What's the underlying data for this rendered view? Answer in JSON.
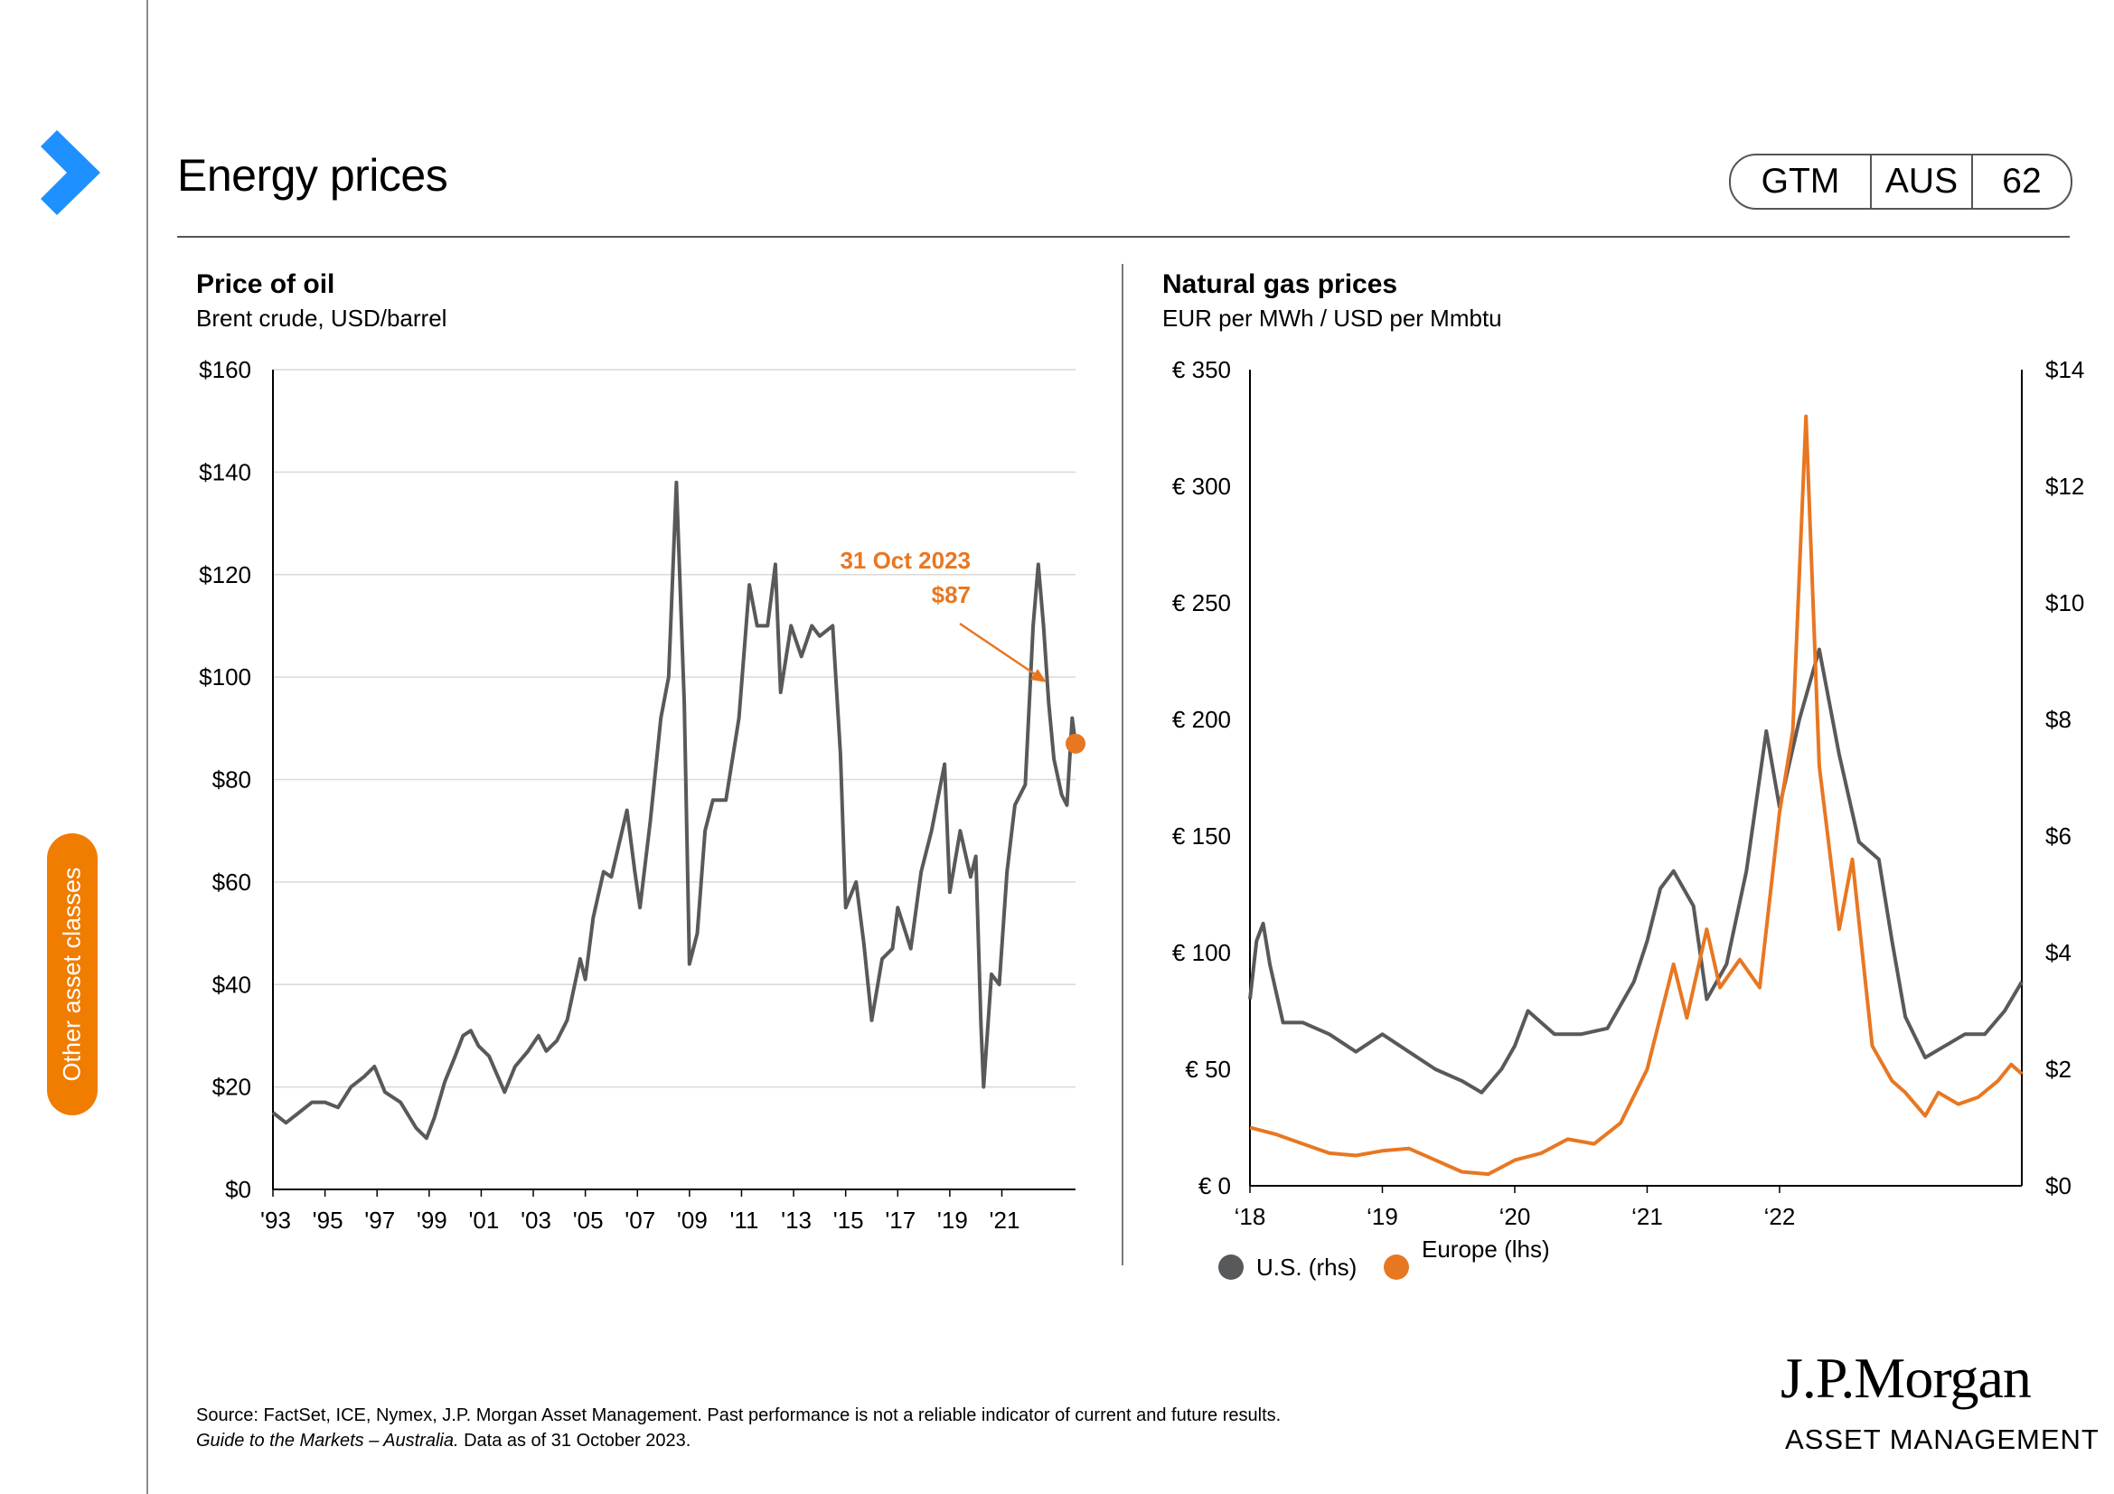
{
  "header": {
    "title": "Energy prices",
    "badge": [
      "GTM",
      "AUS",
      "62"
    ]
  },
  "sidebar": {
    "tab_label": "Other asset classes",
    "tab_color": "#f07c00",
    "arrow_color": "#1e90ff",
    "arrow_icon": "chevron-right-icon"
  },
  "chart_data": [
    {
      "type": "line",
      "title": "Price of oil",
      "subtitle": "Brent crude, USD/barrel",
      "x_tick_labels": [
        "'93",
        "'95",
        "'97",
        "'99",
        "'01",
        "'03",
        "'05",
        "'07",
        "'09",
        "'11",
        "'13",
        "'15",
        "'17",
        "'19",
        "'21"
      ],
      "y_tick_labels": [
        "$0",
        "$20",
        "$40",
        "$60",
        "$80",
        "$100",
        "$120",
        "$140",
        "$160"
      ],
      "xlim": [
        1993,
        2023.83
      ],
      "ylim": [
        0,
        160
      ],
      "grid": true,
      "series": [
        {
          "color": "#58595b",
          "points": [
            [
              1993.0,
              15
            ],
            [
              1993.5,
              13
            ],
            [
              1994.0,
              15
            ],
            [
              1994.5,
              17
            ],
            [
              1995.0,
              17
            ],
            [
              1995.5,
              16
            ],
            [
              1996.0,
              20
            ],
            [
              1996.5,
              22
            ],
            [
              1996.9,
              24
            ],
            [
              1997.3,
              19
            ],
            [
              1997.9,
              17
            ],
            [
              1998.5,
              12
            ],
            [
              1998.9,
              10
            ],
            [
              1999.2,
              14
            ],
            [
              1999.6,
              21
            ],
            [
              2000.0,
              26
            ],
            [
              2000.3,
              30
            ],
            [
              2000.6,
              31
            ],
            [
              2000.9,
              28
            ],
            [
              2001.3,
              26
            ],
            [
              2001.9,
              19
            ],
            [
              2002.3,
              24
            ],
            [
              2002.8,
              27
            ],
            [
              2003.2,
              30
            ],
            [
              2003.5,
              27
            ],
            [
              2003.9,
              29
            ],
            [
              2004.3,
              33
            ],
            [
              2004.8,
              45
            ],
            [
              2005.0,
              41
            ],
            [
              2005.3,
              53
            ],
            [
              2005.7,
              62
            ],
            [
              2006.0,
              61
            ],
            [
              2006.6,
              74
            ],
            [
              2006.9,
              62
            ],
            [
              2007.1,
              55
            ],
            [
              2007.5,
              72
            ],
            [
              2007.9,
              92
            ],
            [
              2008.2,
              100
            ],
            [
              2008.5,
              138
            ],
            [
              2008.8,
              95
            ],
            [
              2009.0,
              44
            ],
            [
              2009.3,
              50
            ],
            [
              2009.6,
              70
            ],
            [
              2009.9,
              76
            ],
            [
              2010.4,
              76
            ],
            [
              2010.9,
              92
            ],
            [
              2011.3,
              118
            ],
            [
              2011.6,
              110
            ],
            [
              2012.0,
              110
            ],
            [
              2012.3,
              122
            ],
            [
              2012.5,
              97
            ],
            [
              2012.9,
              110
            ],
            [
              2013.3,
              104
            ],
            [
              2013.7,
              110
            ],
            [
              2014.0,
              108
            ],
            [
              2014.5,
              110
            ],
            [
              2014.8,
              85
            ],
            [
              2015.0,
              55
            ],
            [
              2015.4,
              60
            ],
            [
              2015.7,
              48
            ],
            [
              2016.0,
              33
            ],
            [
              2016.4,
              45
            ],
            [
              2016.8,
              47
            ],
            [
              2017.0,
              55
            ],
            [
              2017.5,
              47
            ],
            [
              2017.9,
              62
            ],
            [
              2018.3,
              70
            ],
            [
              2018.8,
              83
            ],
            [
              2019.0,
              58
            ],
            [
              2019.4,
              70
            ],
            [
              2019.8,
              61
            ],
            [
              2020.0,
              65
            ],
            [
              2020.2,
              32
            ],
            [
              2020.3,
              20
            ],
            [
              2020.6,
              42
            ],
            [
              2020.9,
              40
            ],
            [
              2021.2,
              62
            ],
            [
              2021.5,
              75
            ],
            [
              2021.9,
              79
            ],
            [
              2022.2,
              110
            ],
            [
              2022.4,
              122
            ],
            [
              2022.6,
              110
            ],
            [
              2022.8,
              95
            ],
            [
              2023.0,
              84
            ],
            [
              2023.3,
              77
            ],
            [
              2023.5,
              75
            ],
            [
              2023.7,
              92
            ],
            [
              2023.83,
              87
            ]
          ]
        }
      ],
      "annotations": [
        {
          "text": "31 Oct 2023",
          "color": "#e87722"
        },
        {
          "text": "$87",
          "color": "#e87722"
        }
      ],
      "last_point": {
        "x": 2023.83,
        "y": 87,
        "color": "#e87722"
      }
    },
    {
      "type": "line",
      "title": "Natural gas prices",
      "subtitle": "EUR per MWh / USD per Mmbtu",
      "x_tick_labels": [
        "‘18",
        "‘19",
        "‘20",
        "‘21",
        "‘22"
      ],
      "y_tick_labels": [
        "€ 0",
        "€ 50",
        "€ 100",
        "€ 150",
        "€ 200",
        "€ 250",
        "€ 300",
        "€ 350"
      ],
      "y2_tick_labels": [
        "$0",
        "$2",
        "$4",
        "$6",
        "$8",
        "$10",
        "$12",
        "$14"
      ],
      "xlim": [
        2018.0,
        2023.83
      ],
      "ylim": [
        0,
        350
      ],
      "y2lim": [
        0,
        14
      ],
      "grid": false,
      "legend_position": "bottom-left",
      "series": [
        {
          "name": "U.S. (rhs)",
          "axis": "right",
          "color": "#58595b",
          "points": [
            [
              2018.0,
              3.2
            ],
            [
              2018.05,
              4.2
            ],
            [
              2018.1,
              4.5
            ],
            [
              2018.15,
              3.8
            ],
            [
              2018.25,
              2.8
            ],
            [
              2018.4,
              2.8
            ],
            [
              2018.6,
              2.6
            ],
            [
              2018.8,
              2.3
            ],
            [
              2019.0,
              2.6
            ],
            [
              2019.2,
              2.3
            ],
            [
              2019.4,
              2.0
            ],
            [
              2019.6,
              1.8
            ],
            [
              2019.75,
              1.6
            ],
            [
              2019.9,
              2.0
            ],
            [
              2020.0,
              2.4
            ],
            [
              2020.1,
              3.0
            ],
            [
              2020.3,
              2.6
            ],
            [
              2020.5,
              2.6
            ],
            [
              2020.7,
              2.7
            ],
            [
              2020.9,
              3.5
            ],
            [
              2021.0,
              4.2
            ],
            [
              2021.1,
              5.1
            ],
            [
              2021.2,
              5.4
            ],
            [
              2021.35,
              4.8
            ],
            [
              2021.45,
              3.2
            ],
            [
              2021.6,
              3.8
            ],
            [
              2021.75,
              5.4
            ],
            [
              2021.9,
              7.8
            ],
            [
              2022.0,
              6.5
            ],
            [
              2022.15,
              8.0
            ],
            [
              2022.3,
              9.2
            ],
            [
              2022.45,
              7.4
            ],
            [
              2022.6,
              5.9
            ],
            [
              2022.75,
              5.6
            ],
            [
              2022.85,
              4.2
            ],
            [
              2022.95,
              2.9
            ],
            [
              2023.1,
              2.2
            ],
            [
              2023.25,
              2.4
            ],
            [
              2023.4,
              2.6
            ],
            [
              2023.55,
              2.6
            ],
            [
              2023.7,
              3.0
            ],
            [
              2023.83,
              3.5
            ]
          ]
        },
        {
          "name": "Europe (lhs)",
          "axis": "left",
          "color": "#e87722",
          "points": [
            [
              2018.0,
              25
            ],
            [
              2018.2,
              22
            ],
            [
              2018.4,
              18
            ],
            [
              2018.6,
              14
            ],
            [
              2018.8,
              13
            ],
            [
              2019.0,
              15
            ],
            [
              2019.2,
              16
            ],
            [
              2019.4,
              11
            ],
            [
              2019.6,
              6
            ],
            [
              2019.8,
              5
            ],
            [
              2020.0,
              11
            ],
            [
              2020.2,
              14
            ],
            [
              2020.4,
              20
            ],
            [
              2020.6,
              18
            ],
            [
              2020.8,
              27
            ],
            [
              2021.0,
              50
            ],
            [
              2021.2,
              95
            ],
            [
              2021.3,
              72
            ],
            [
              2021.45,
              110
            ],
            [
              2021.55,
              85
            ],
            [
              2021.7,
              97
            ],
            [
              2021.85,
              85
            ],
            [
              2022.0,
              160
            ],
            [
              2022.1,
              195
            ],
            [
              2022.2,
              330
            ],
            [
              2022.3,
              180
            ],
            [
              2022.45,
              110
            ],
            [
              2022.55,
              140
            ],
            [
              2022.7,
              60
            ],
            [
              2022.85,
              45
            ],
            [
              2022.95,
              40
            ],
            [
              2023.1,
              30
            ],
            [
              2023.2,
              40
            ],
            [
              2023.35,
              35
            ],
            [
              2023.5,
              38
            ],
            [
              2023.65,
              45
            ],
            [
              2023.75,
              52
            ],
            [
              2023.83,
              48
            ]
          ]
        }
      ]
    }
  ],
  "footer": {
    "source": "Source: FactSet, ICE, Nymex, J.P. Morgan Asset Management.  Past performance is not a reliable indicator of current and future results.",
    "guide": "Guide to the Markets – Australia.",
    "data_as_of": " Data as of 31 October 2023."
  },
  "logo": {
    "name": "J.P.Morgan",
    "subtitle": "ASSET MANAGEMENT"
  }
}
